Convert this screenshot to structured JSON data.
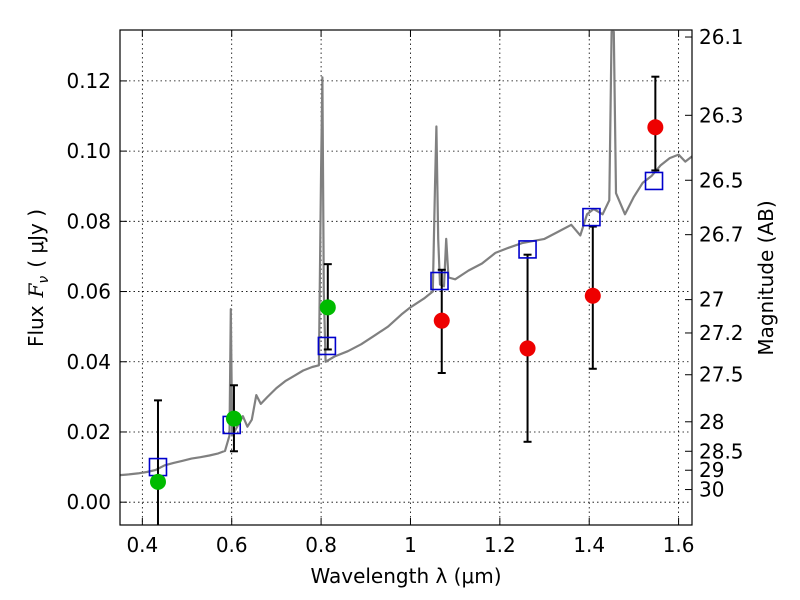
{
  "chart_data": {
    "type": "scatter",
    "xlabel": "Wavelength  λ (μm)",
    "ylabel_text": "Flux",
    "ylabel_symbol": "F",
    "ylabel_symbol_sub": "ν",
    "ylabel_unit": "( μJy )",
    "y2label": "Magnitude (AB)",
    "xlim": [
      0.35,
      1.63
    ],
    "ylim": [
      -0.0065,
      0.1345
    ],
    "grid": true,
    "x_ticks": [
      {
        "value": 0.4,
        "label": "0.4"
      },
      {
        "value": 0.6,
        "label": "0.6"
      },
      {
        "value": 0.8,
        "label": "0.8"
      },
      {
        "value": 1.0,
        "label": "1"
      },
      {
        "value": 1.2,
        "label": "1.2"
      },
      {
        "value": 1.4,
        "label": "1.4"
      },
      {
        "value": 1.6,
        "label": "1.6"
      }
    ],
    "y_ticks": [
      {
        "value": 0.0,
        "label": "0.00"
      },
      {
        "value": 0.02,
        "label": "0.02"
      },
      {
        "value": 0.04,
        "label": "0.04"
      },
      {
        "value": 0.06,
        "label": "0.06"
      },
      {
        "value": 0.08,
        "label": "0.08"
      },
      {
        "value": 0.1,
        "label": "0.10"
      },
      {
        "value": 0.12,
        "label": "0.12"
      }
    ],
    "y2_ticks": [
      {
        "flux": 0.1325,
        "label": "26.1"
      },
      {
        "flux": 0.1102,
        "label": "26.3"
      },
      {
        "flux": 0.0917,
        "label": "26.5"
      },
      {
        "flux": 0.0762,
        "label": "26.7"
      },
      {
        "flux": 0.0577,
        "label": "27"
      },
      {
        "flux": 0.0482,
        "label": "27.2"
      },
      {
        "flux": 0.0363,
        "label": "27.5"
      },
      {
        "flux": 0.0229,
        "label": "28"
      },
      {
        "flux": 0.0145,
        "label": "28.5"
      },
      {
        "flux": 0.0091,
        "label": "29"
      },
      {
        "flux": 0.0036,
        "label": "30"
      }
    ],
    "colors": {
      "model": "#808080",
      "model_photometry": "#0000cc",
      "green_points": "#00bb00",
      "red_points": "#ee0000",
      "errorbars": "#000000"
    },
    "model_spectrum": [
      [
        0.35,
        0.0077
      ],
      [
        0.37,
        0.0079
      ],
      [
        0.39,
        0.0082
      ],
      [
        0.41,
        0.0086
      ],
      [
        0.43,
        0.0092
      ],
      [
        0.45,
        0.0105
      ],
      [
        0.47,
        0.0112
      ],
      [
        0.49,
        0.0118
      ],
      [
        0.51,
        0.0124
      ],
      [
        0.53,
        0.0128
      ],
      [
        0.55,
        0.0133
      ],
      [
        0.57,
        0.0139
      ],
      [
        0.585,
        0.0146
      ],
      [
        0.595,
        0.019
      ],
      [
        0.598,
        0.055
      ],
      [
        0.601,
        0.019
      ],
      [
        0.61,
        0.021
      ],
      [
        0.625,
        0.0245
      ],
      [
        0.635,
        0.0215
      ],
      [
        0.645,
        0.0235
      ],
      [
        0.655,
        0.0305
      ],
      [
        0.665,
        0.028
      ],
      [
        0.68,
        0.03
      ],
      [
        0.7,
        0.0325
      ],
      [
        0.72,
        0.0345
      ],
      [
        0.74,
        0.036
      ],
      [
        0.76,
        0.0375
      ],
      [
        0.78,
        0.0385
      ],
      [
        0.795,
        0.039
      ],
      [
        0.8,
        0.095
      ],
      [
        0.803,
        0.121
      ],
      [
        0.806,
        0.06
      ],
      [
        0.81,
        0.04
      ],
      [
        0.83,
        0.0415
      ],
      [
        0.86,
        0.043
      ],
      [
        0.89,
        0.045
      ],
      [
        0.92,
        0.0475
      ],
      [
        0.95,
        0.05
      ],
      [
        0.98,
        0.0535
      ],
      [
        1.0,
        0.0555
      ],
      [
        1.03,
        0.058
      ],
      [
        1.05,
        0.06
      ],
      [
        1.055,
        0.09
      ],
      [
        1.058,
        0.107
      ],
      [
        1.062,
        0.075
      ],
      [
        1.066,
        0.062
      ],
      [
        1.075,
        0.0615
      ],
      [
        1.08,
        0.075
      ],
      [
        1.085,
        0.064
      ],
      [
        1.1,
        0.0635
      ],
      [
        1.13,
        0.066
      ],
      [
        1.16,
        0.068
      ],
      [
        1.19,
        0.071
      ],
      [
        1.22,
        0.0725
      ],
      [
        1.25,
        0.0738
      ],
      [
        1.28,
        0.0745
      ],
      [
        1.3,
        0.075
      ],
      [
        1.33,
        0.077
      ],
      [
        1.36,
        0.079
      ],
      [
        1.38,
        0.076
      ],
      [
        1.395,
        0.082
      ],
      [
        1.41,
        0.0835
      ],
      [
        1.43,
        0.082
      ],
      [
        1.445,
        0.086
      ],
      [
        1.45,
        0.134
      ],
      [
        1.455,
        0.134
      ],
      [
        1.46,
        0.088
      ],
      [
        1.48,
        0.082
      ],
      [
        1.5,
        0.087
      ],
      [
        1.52,
        0.091
      ],
      [
        1.54,
        0.093
      ],
      [
        1.56,
        0.096
      ],
      [
        1.58,
        0.098
      ],
      [
        1.6,
        0.099
      ],
      [
        1.615,
        0.097
      ],
      [
        1.63,
        0.0985
      ]
    ],
    "model_photometry": [
      {
        "x": 0.435,
        "y": 0.01
      },
      {
        "x": 0.6,
        "y": 0.022
      },
      {
        "x": 0.813,
        "y": 0.0445
      },
      {
        "x": 1.065,
        "y": 0.063
      },
      {
        "x": 1.262,
        "y": 0.072
      },
      {
        "x": 1.405,
        "y": 0.0812
      },
      {
        "x": 1.545,
        "y": 0.0915
      }
    ],
    "observed_green": [
      {
        "x": 0.435,
        "y": 0.0058,
        "ylo": -0.0065,
        "yhi": 0.029
      },
      {
        "x": 0.605,
        "y": 0.0238,
        "ylo": 0.0145,
        "yhi": 0.0333
      },
      {
        "x": 0.815,
        "y": 0.0555,
        "ylo": 0.0435,
        "yhi": 0.0678
      }
    ],
    "observed_red": [
      {
        "x": 1.07,
        "y": 0.0517,
        "ylo": 0.0368,
        "yhi": 0.0662
      },
      {
        "x": 1.262,
        "y": 0.0438,
        "ylo": 0.0172,
        "yhi": 0.0705
      },
      {
        "x": 1.408,
        "y": 0.0588,
        "ylo": 0.038,
        "yhi": 0.0785
      },
      {
        "x": 1.548,
        "y": 0.1068,
        "ylo": 0.0945,
        "yhi": 0.1212
      }
    ]
  }
}
